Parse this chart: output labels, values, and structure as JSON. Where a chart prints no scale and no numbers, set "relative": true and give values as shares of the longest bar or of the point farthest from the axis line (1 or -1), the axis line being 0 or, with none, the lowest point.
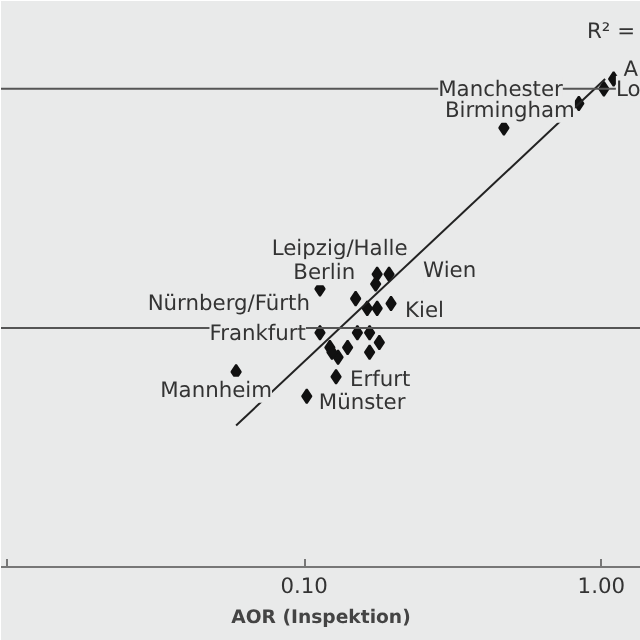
{
  "chart_data": {
    "type": "scatter",
    "xlabel": "AOR (Inspektion)",
    "log": "x",
    "relative": true,
    "xlim": [
      0.00954,
      1.36
    ],
    "xticks": [
      {
        "value": 0.01,
        "label": null
      },
      {
        "value": 0.1,
        "label": "0.10"
      },
      {
        "value": 1,
        "label": "1.00"
      }
    ],
    "grid": false,
    "tick_labels": "x",
    "series": [
      {
        "type": "scatter",
        "marker": "diamond",
        "color": "#111111",
        "x": [
          1.1,
          1.02,
          0.84,
          0.47,
          0.113,
          0.149,
          0.176,
          0.193,
          0.174,
          0.163,
          0.176,
          0.196,
          0.113,
          0.151,
          0.166,
          0.179,
          0.166,
          0.14,
          0.122,
          0.13,
          0.124,
          0.059,
          0.128,
          0.102
        ],
        "values": [
          1.0,
          0.98,
          0.95,
          0.9,
          0.57,
          0.55,
          0.6,
          0.6,
          0.58,
          0.53,
          0.53,
          0.54,
          0.48,
          0.48,
          0.48,
          0.46,
          0.44,
          0.45,
          0.45,
          0.43,
          0.44,
          0.4,
          0.39,
          0.35
        ]
      },
      {
        "type": "line",
        "color": "#222222",
        "x": [
          0.059,
          1.03
        ],
        "values": [
          0.29,
          1.0
        ]
      }
    ],
    "ref_lines": [
      {
        "axis": "y",
        "value": 0.98,
        "color": "#555555"
      },
      {
        "axis": "y",
        "value": 0.49,
        "color": "#555555"
      }
    ],
    "annotations": [
      "R² =",
      {
        "text": "A",
        "x": 1.1,
        "y": 1.0
      },
      {
        "text": "Lo",
        "x": 1.02,
        "y": 0.98
      },
      {
        "text": "Manchester",
        "x": 0.84,
        "y": 0.95
      },
      {
        "text": "Birmingham",
        "x": 0.47,
        "y": 0.9
      },
      {
        "text": "Leipzig/Halle",
        "x": 0.174,
        "y": 0.58
      },
      {
        "text": "Berlin",
        "x": 0.176,
        "y": 0.6
      },
      {
        "text": "Wien",
        "x": 0.193,
        "y": 0.6
      },
      {
        "text": "Nürnberg/Fürth",
        "x": 0.113,
        "y": 0.57
      },
      {
        "text": "Kiel",
        "x": 0.196,
        "y": 0.54
      },
      {
        "text": "Frankfurt",
        "x": 0.113,
        "y": 0.48
      },
      {
        "text": "Mannheim",
        "x": 0.059,
        "y": 0.4
      },
      {
        "text": "Erfurt",
        "x": 0.128,
        "y": 0.39
      },
      {
        "text": "Münster",
        "x": 0.102,
        "y": 0.35
      }
    ]
  }
}
